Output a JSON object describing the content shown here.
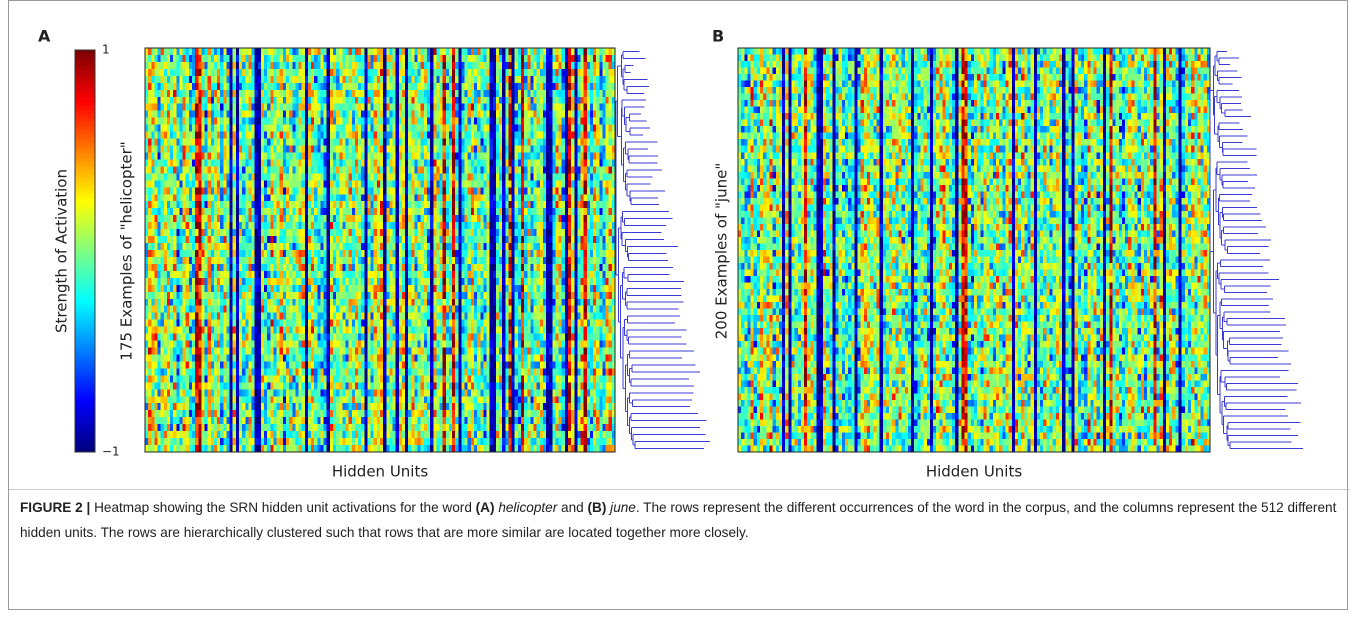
{
  "figure": {
    "panels": [
      {
        "label": "A",
        "colorbar_label": "Strength of Activation",
        "colorbar_max": "1",
        "colorbar_min": "−1",
        "y_label": "175 Examples of \"helicopter\"",
        "x_label": "Hidden Units"
      },
      {
        "label": "B",
        "y_label": "200 Examples of \"june\"",
        "x_label": "Hidden Units"
      }
    ],
    "caption": {
      "label": "FIGURE 2 |",
      "parts": [
        "Heatmap showing the SRN hidden unit activations for the word",
        "(A)",
        "helicopter",
        "and",
        "(B)",
        "june",
        ". The rows represent the different occurrences of the word in the corpus, and the columns represent the 512 different hidden units. The rows are hierarchically clustered such that rows that are more similar are located together more closely."
      ]
    }
  }
}
